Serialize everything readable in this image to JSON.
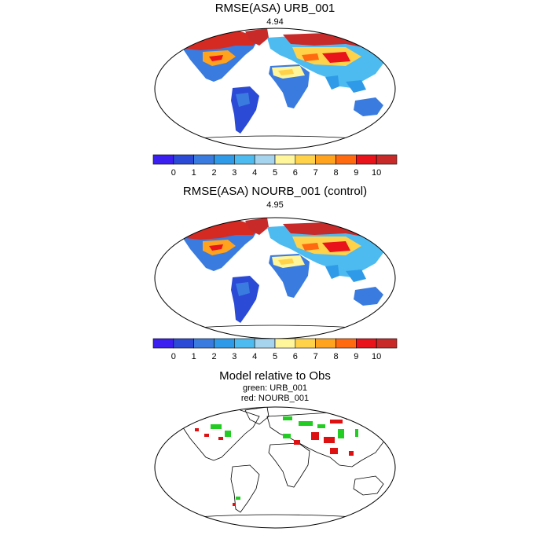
{
  "panels": [
    {
      "title": "RMSE(ASA) URB_001",
      "subtitle": "4.94"
    },
    {
      "title": "RMSE(ASA) NOURB_001 (control)",
      "subtitle": "4.95"
    },
    {
      "title": "Model relative to Obs",
      "line1": "green: URB_001",
      "line2": "red: NOURB_001"
    }
  ],
  "colorbar": {
    "labels": [
      "0",
      "1",
      "2",
      "3",
      "4",
      "5",
      "6",
      "7",
      "8",
      "9",
      "10"
    ],
    "colors": [
      "#3a1ff0",
      "#2b4ad6",
      "#3a7be0",
      "#2f9be8",
      "#4dbbf0",
      "#a6d4ee",
      "#fff59a",
      "#ffd24a",
      "#ffa21e",
      "#ff6a10",
      "#e8131b",
      "#c82a2a"
    ]
  },
  "legend_colors": {
    "green": "#22cc22",
    "red": "#dd1111"
  }
}
